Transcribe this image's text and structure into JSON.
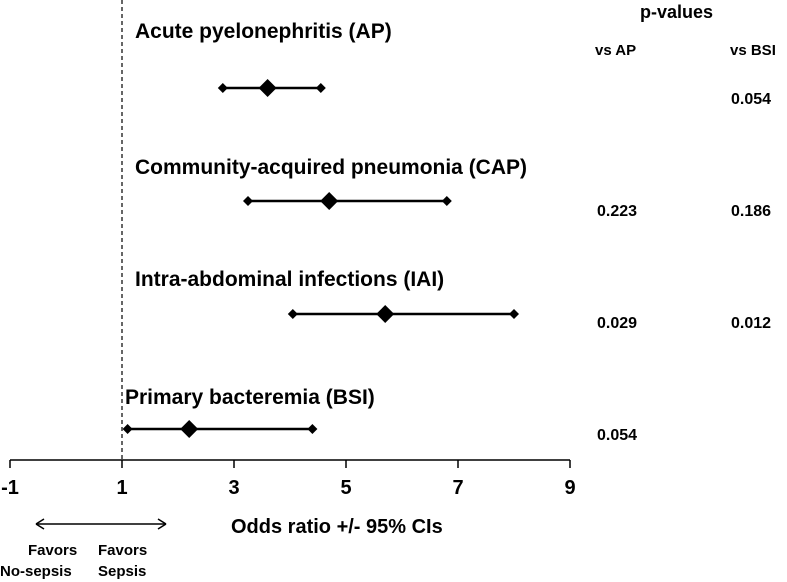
{
  "chart_data": {
    "type": "forest",
    "xlabel": "Odds ratio +/- 95% CIs",
    "xlim": [
      -1,
      9
    ],
    "xticks": [
      "-1",
      "1",
      "3",
      "5",
      "7",
      "9"
    ],
    "reference_line": 1,
    "groups": [
      {
        "label": "Acute pyelonephritis (AP)",
        "or": 3.6,
        "lo": 2.8,
        "hi": 4.55,
        "p_vs_ap": "",
        "p_vs_bsi": "0.054"
      },
      {
        "label": "Community-acquired pneumonia (CAP)",
        "or": 4.7,
        "lo": 3.25,
        "hi": 6.8,
        "p_vs_ap": "0.223",
        "p_vs_bsi": "0.186"
      },
      {
        "label": "Intra-abdominal infections (IAI)",
        "or": 5.7,
        "lo": 4.05,
        "hi": 8.0,
        "p_vs_ap": "0.029",
        "p_vs_bsi": "0.012"
      },
      {
        "label": "Primary bacteremia (BSI)",
        "or": 2.2,
        "lo": 1.1,
        "hi": 4.4,
        "p_vs_ap": "0.054",
        "p_vs_bsi": ""
      }
    ],
    "pvalues": {
      "title": "p-values",
      "col_ap": "vs AP",
      "col_bsi": "vs BSI"
    },
    "favors": {
      "left_line1": "Favors",
      "left_line2": "No-sepsis",
      "right_line1": "Favors",
      "right_line2": "Sepsis"
    }
  }
}
